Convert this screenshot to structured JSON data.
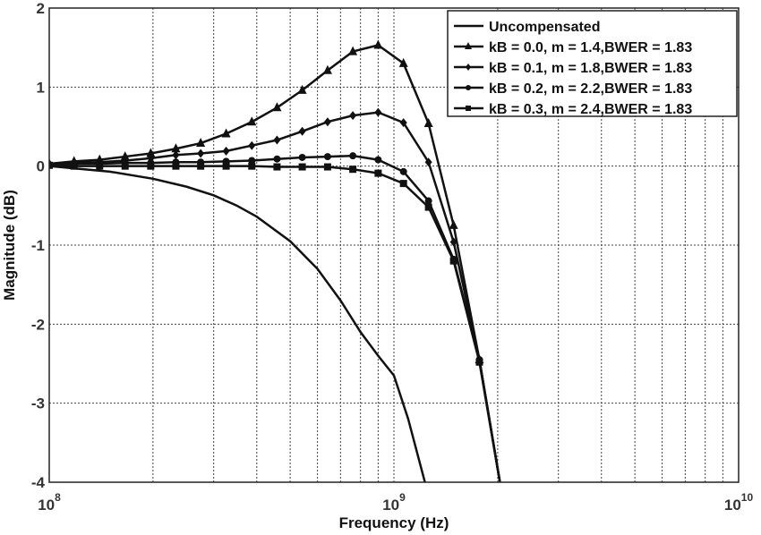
{
  "chart_data": {
    "type": "line",
    "xlabel": "Frequency (Hz)",
    "ylabel": "Magnitude (dB)",
    "xscale": "log",
    "xlim": [
      100000000.0,
      10000000000.0
    ],
    "ylim": [
      -4,
      2
    ],
    "grid": true,
    "legend_position": "top-right",
    "x_ticks": [
      {
        "base": "10",
        "exp": "8",
        "value": 100000000.0
      },
      {
        "base": "10",
        "exp": "9",
        "value": 1000000000.0
      },
      {
        "base": "10",
        "exp": "10",
        "value": 10000000000.0
      }
    ],
    "y_ticks": [
      "2",
      "1",
      "0",
      "-1",
      "-2",
      "-3",
      "-4"
    ],
    "x": [
      100000000.0,
      118000000.0,
      140000000.0,
      166000000.0,
      197000000.0,
      233000000.0,
      275000000.0,
      326000000.0,
      387000000.0,
      458000000.0,
      542000000.0,
      642000000.0,
      760000000.0,
      900000000.0,
      1066000000.0,
      1260000000.0,
      1490000000.0,
      1770000000.0,
      2030000000.0
    ],
    "series": [
      {
        "name": "Uncompensated",
        "marker": "none",
        "x": [
          100000000.0,
          150000000.0,
          200000000.0,
          250000000.0,
          300000000.0,
          350000000.0,
          400000000.0,
          500000000.0,
          600000000.0,
          700000000.0,
          800000000.0,
          900000000.0,
          1000000000.0,
          1100000000.0,
          1230000000.0
        ],
        "values": [
          0,
          -0.07,
          -0.16,
          -0.26,
          -0.37,
          -0.5,
          -0.64,
          -0.95,
          -1.3,
          -1.7,
          -2.1,
          -2.4,
          -2.65,
          -3.2,
          -4
        ]
      },
      {
        "name": "kB = 0.0, m = 1.4,BWER = 1.83",
        "marker": "triangle",
        "values": [
          0.03,
          0.06,
          0.08,
          0.12,
          0.16,
          0.22,
          0.29,
          0.41,
          0.56,
          0.74,
          0.96,
          1.21,
          1.45,
          1.53,
          1.3,
          0.54,
          -0.75,
          -2.45,
          -4
        ]
      },
      {
        "name": "kB = 0.1, m = 1.8,BWER = 1.83",
        "marker": "diamond",
        "values": [
          0.02,
          0.04,
          0.05,
          0.07,
          0.1,
          0.14,
          0.16,
          0.19,
          0.26,
          0.33,
          0.44,
          0.56,
          0.64,
          0.68,
          0.55,
          0.05,
          -0.96,
          -2.45,
          -4
        ]
      },
      {
        "name": "kB = 0.2, m = 2.2,BWER = 1.83",
        "marker": "circle",
        "values": [
          0.02,
          0.03,
          0.03,
          0.04,
          0.04,
          0.05,
          0.05,
          0.06,
          0.07,
          0.09,
          0.11,
          0.12,
          0.13,
          0.08,
          -0.07,
          -0.44,
          -1.18,
          -2.45,
          -4
        ]
      },
      {
        "name": "kB = 0.3, m = 2.4,BWER = 1.83",
        "marker": "square",
        "values": [
          0.01,
          0.0,
          0.0,
          0.0,
          0.0,
          0.0,
          0.0,
          0.0,
          0.0,
          -0.01,
          -0.01,
          -0.01,
          -0.04,
          -0.09,
          -0.22,
          -0.52,
          -1.2,
          -2.48,
          -4
        ]
      }
    ]
  }
}
